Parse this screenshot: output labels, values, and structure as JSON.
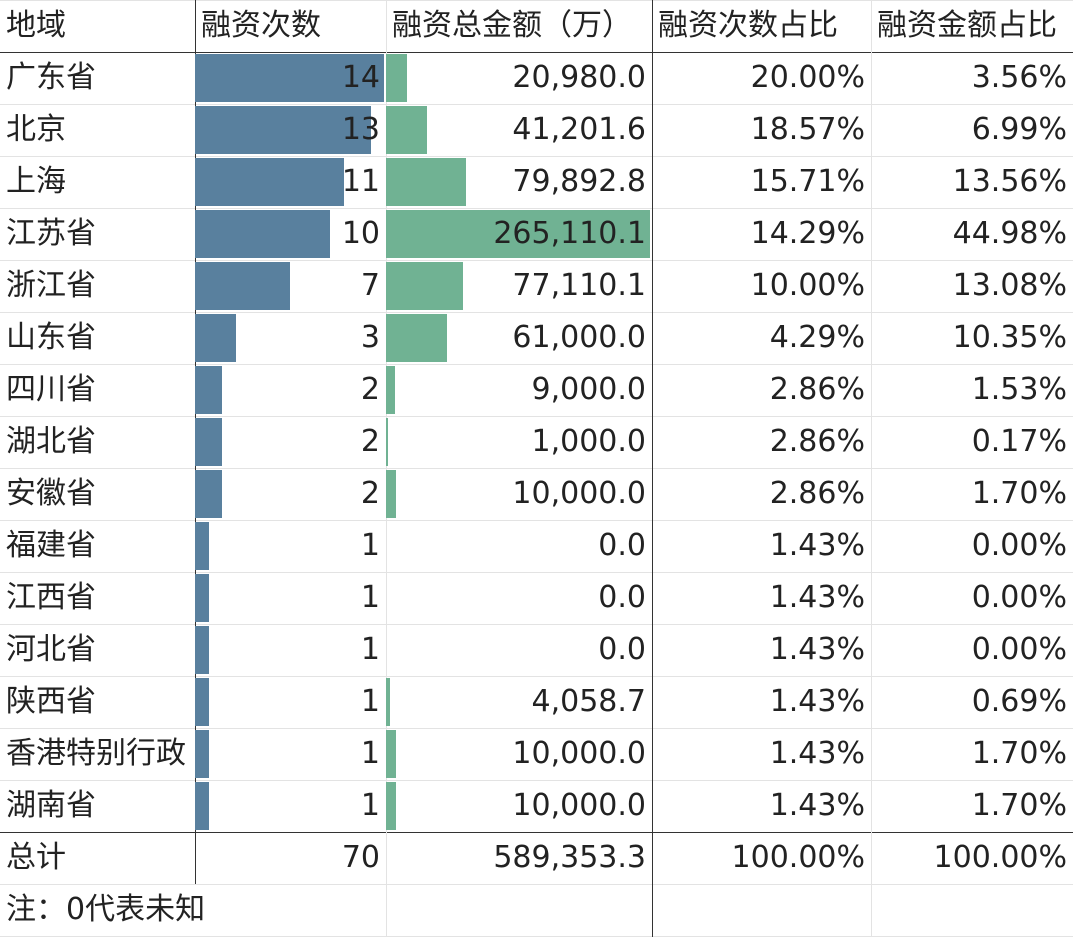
{
  "colors": {
    "count_bar": "#59809e",
    "amount_bar": "#70b293"
  },
  "headers": {
    "region": "地域",
    "count": "融资次数",
    "amount": "融资总金额（万）",
    "count_ratio": "融资次数占比",
    "amount_ratio": "融资金额占比"
  },
  "max_count": 14,
  "max_amount": 265110.1,
  "rows": [
    {
      "region": "广东省",
      "count": 14,
      "count_label": "14",
      "amount": 20980.0,
      "amount_label": "20,980.0",
      "count_ratio": "20.00%",
      "amount_ratio": "3.56%"
    },
    {
      "region": "北京",
      "count": 13,
      "count_label": "13",
      "amount": 41201.6,
      "amount_label": "41,201.6",
      "count_ratio": "18.57%",
      "amount_ratio": "6.99%"
    },
    {
      "region": "上海",
      "count": 11,
      "count_label": "11",
      "amount": 79892.8,
      "amount_label": "79,892.8",
      "count_ratio": "15.71%",
      "amount_ratio": "13.56%"
    },
    {
      "region": "江苏省",
      "count": 10,
      "count_label": "10",
      "amount": 265110.1,
      "amount_label": "265,110.1",
      "count_ratio": "14.29%",
      "amount_ratio": "44.98%"
    },
    {
      "region": "浙江省",
      "count": 7,
      "count_label": "7",
      "amount": 77110.1,
      "amount_label": "77,110.1",
      "count_ratio": "10.00%",
      "amount_ratio": "13.08%"
    },
    {
      "region": "山东省",
      "count": 3,
      "count_label": "3",
      "amount": 61000.0,
      "amount_label": "61,000.0",
      "count_ratio": "4.29%",
      "amount_ratio": "10.35%"
    },
    {
      "region": "四川省",
      "count": 2,
      "count_label": "2",
      "amount": 9000.0,
      "amount_label": "9,000.0",
      "count_ratio": "2.86%",
      "amount_ratio": "1.53%"
    },
    {
      "region": "湖北省",
      "count": 2,
      "count_label": "2",
      "amount": 1000.0,
      "amount_label": "1,000.0",
      "count_ratio": "2.86%",
      "amount_ratio": "0.17%"
    },
    {
      "region": "安徽省",
      "count": 2,
      "count_label": "2",
      "amount": 10000.0,
      "amount_label": "10,000.0",
      "count_ratio": "2.86%",
      "amount_ratio": "1.70%"
    },
    {
      "region": "福建省",
      "count": 1,
      "count_label": "1",
      "amount": 0.0,
      "amount_label": "0.0",
      "count_ratio": "1.43%",
      "amount_ratio": "0.00%"
    },
    {
      "region": "江西省",
      "count": 1,
      "count_label": "1",
      "amount": 0.0,
      "amount_label": "0.0",
      "count_ratio": "1.43%",
      "amount_ratio": "0.00%"
    },
    {
      "region": "河北省",
      "count": 1,
      "count_label": "1",
      "amount": 0.0,
      "amount_label": "0.0",
      "count_ratio": "1.43%",
      "amount_ratio": "0.00%"
    },
    {
      "region": "陕西省",
      "count": 1,
      "count_label": "1",
      "amount": 4058.7,
      "amount_label": "4,058.7",
      "count_ratio": "1.43%",
      "amount_ratio": "0.69%"
    },
    {
      "region": "香港特别行政",
      "count": 1,
      "count_label": "1",
      "amount": 10000.0,
      "amount_label": "10,000.0",
      "count_ratio": "1.43%",
      "amount_ratio": "1.70%"
    },
    {
      "region": "湖南省",
      "count": 1,
      "count_label": "1",
      "amount": 10000.0,
      "amount_label": "10,000.0",
      "count_ratio": "1.43%",
      "amount_ratio": "1.70%"
    }
  ],
  "total": {
    "label": "总计",
    "count": "70",
    "amount": "589,353.3",
    "count_ratio": "100.00%",
    "amount_ratio": "100.00%"
  },
  "note": "注：0代表未知"
}
